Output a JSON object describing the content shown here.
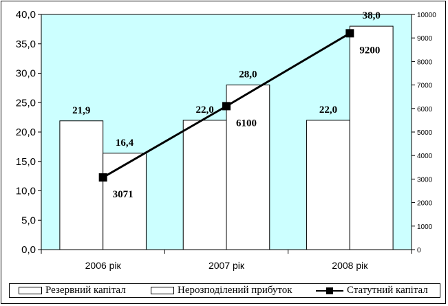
{
  "chart_data": {
    "type": "bar",
    "categories": [
      "2006 рік",
      "2007 рік",
      "2008 рік"
    ],
    "series": [
      {
        "name": "Резервний капітал",
        "type": "bar",
        "axis": "left",
        "values": [
          21.9,
          22.0,
          22.0
        ],
        "labels": [
          "21,9",
          "22,0",
          "22,0"
        ]
      },
      {
        "name": "Нерозподілений прибуток",
        "type": "bar",
        "axis": "left",
        "values": [
          16.4,
          28.0,
          38.0
        ],
        "labels": [
          "16,4",
          "28,0",
          "38,0"
        ]
      },
      {
        "name": "Статутний капітал",
        "type": "line",
        "axis": "right",
        "values": [
          3071,
          6100,
          9200
        ],
        "labels": [
          "3071",
          "6100",
          "9200"
        ]
      }
    ],
    "y_left": {
      "min": 0,
      "max": 40,
      "step": 5,
      "ticks": [
        "0,0",
        "5,0",
        "10,0",
        "15,0",
        "20,0",
        "25,0",
        "30,0",
        "35,0",
        "40,0"
      ]
    },
    "y_right": {
      "min": 0,
      "max": 10000,
      "step": 1000,
      "ticks": [
        "0",
        "1000",
        "2000",
        "3000",
        "4000",
        "5000",
        "6000",
        "7000",
        "8000",
        "9000",
        "10000"
      ]
    },
    "plot_background": "#ccffff",
    "bar_fill": "#ffffff",
    "line_color": "#000000",
    "grid": false,
    "legend_position": "bottom"
  }
}
